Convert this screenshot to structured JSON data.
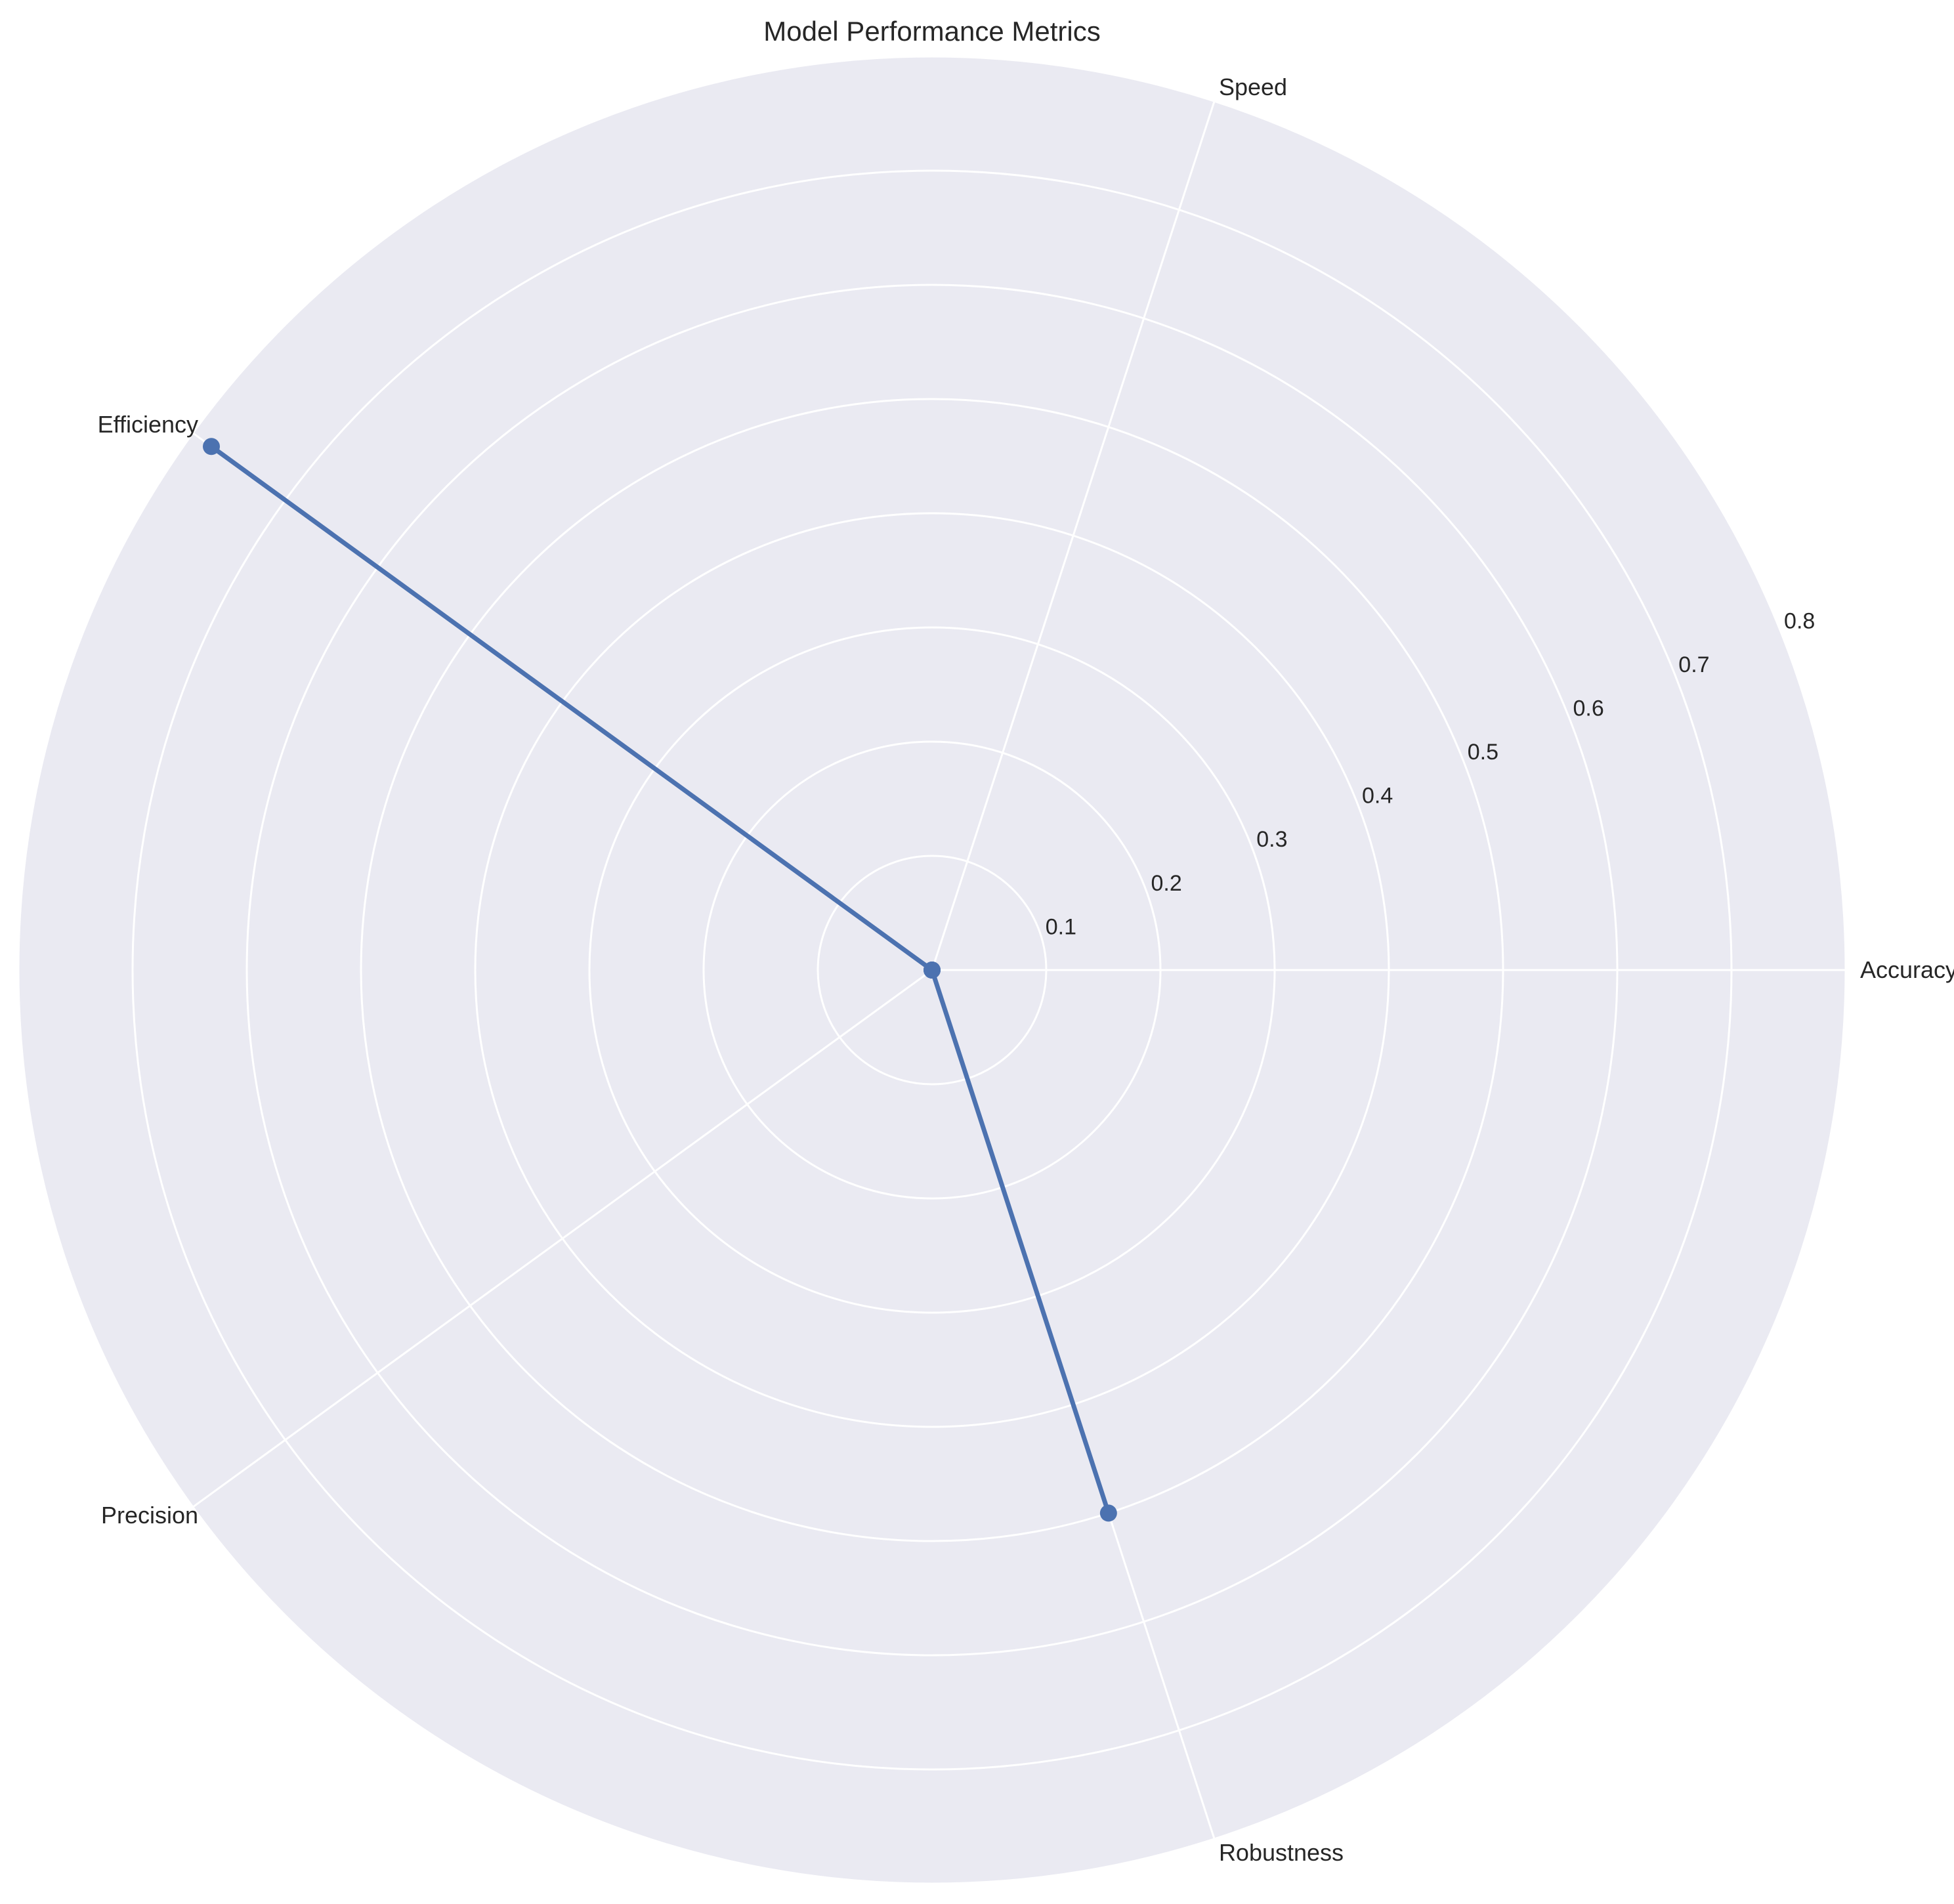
{
  "chart_data": {
    "type": "radar",
    "title": "Model Performance Metrics",
    "categories": [
      "Accuracy",
      "Speed",
      "Efficiency",
      "Precision",
      "Robustness"
    ],
    "series": [
      {
        "values": [
          0.0,
          0.0,
          0.78,
          0.0,
          0.5
        ],
        "color": "#4c72b0"
      }
    ],
    "r_ticks": [
      0.1,
      0.2,
      0.3,
      0.4,
      0.5,
      0.6,
      0.7,
      0.8
    ],
    "rlim": [
      0,
      0.8
    ],
    "grid": true,
    "background_color": "#eaeaf2",
    "grid_color": "#ffffff"
  }
}
